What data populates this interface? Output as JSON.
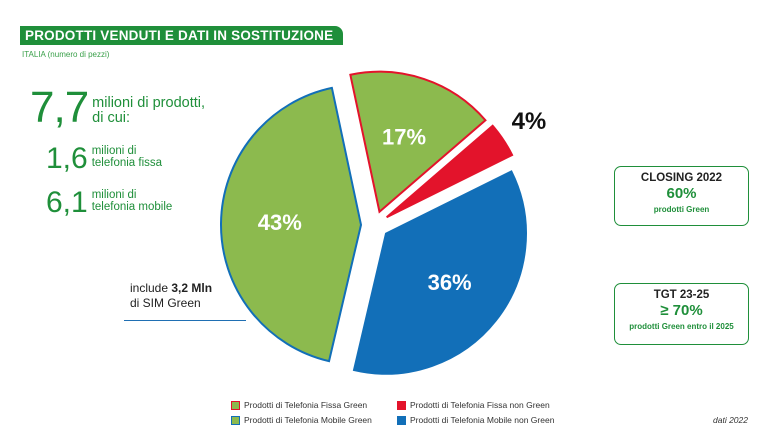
{
  "title": "PRODOTTI VENDUTI E DATI IN SOSTITUZIONE",
  "subtitle": "ITALIA (numero di pezzi)",
  "stats": {
    "total": {
      "value": "7,7",
      "text_line1": "milioni di prodotti,",
      "text_line2": "di cui:"
    },
    "fissa": {
      "value": "1,6",
      "text_line1": "milioni di",
      "text_line2": "telefonia fissa"
    },
    "mobile": {
      "value": "6,1",
      "text_line1": "milioni di",
      "text_line2": "telefonia mobile"
    }
  },
  "include_note": {
    "prefix": "include ",
    "bold": "3,2 Mln",
    "line2": "di SIM Green"
  },
  "boxes": {
    "closing": {
      "heading": "CLOSING 2022",
      "value": "60%",
      "footnote": "prodotti Green"
    },
    "tgt": {
      "heading": "TGT 23-25",
      "value": "≥ 70%",
      "footnote": "prodotti Green entro il 2025"
    }
  },
  "source": "dati 2022",
  "colors": {
    "green": "#8cba4e",
    "green_dark": "#1f8f3a",
    "red": "#e3132b",
    "blue": "#126fb8"
  },
  "chart_data": {
    "type": "pie",
    "slices": [
      {
        "name": "Prodotti di Telefonia Fissa Green",
        "value": 17,
        "label": "17%",
        "fill": "#8cba4e",
        "stroke": "#e3132b"
      },
      {
        "name": "Prodotti di Telefonia Fissa non Green",
        "value": 4,
        "label": "4%",
        "fill": "#e3132b",
        "stroke": "#e3132b"
      },
      {
        "name": "Prodotti di Telefonia Mobile non Green",
        "value": 36,
        "label": "36%",
        "fill": "#126fb8",
        "stroke": "#126fb8"
      },
      {
        "name": "Prodotti di Telefonia Mobile Green",
        "value": 43,
        "label": "43%",
        "fill": "#8cba4e",
        "stroke": "#126fb8"
      }
    ],
    "legend": [
      {
        "label": "Prodotti di Telefonia Fissa Green",
        "fill": "#8cba4e",
        "stroke": "#e3132b"
      },
      {
        "label": "Prodotti di Telefonia Fissa non Green",
        "fill": "#e3132b",
        "stroke": "#e3132b"
      },
      {
        "label": "Prodotti di Telefonia Mobile Green",
        "fill": "#8cba4e",
        "stroke": "#126fb8"
      },
      {
        "label": "Prodotti di Telefonia Mobile non Green",
        "fill": "#126fb8",
        "stroke": "#126fb8"
      }
    ],
    "legend_position": "bottom"
  }
}
